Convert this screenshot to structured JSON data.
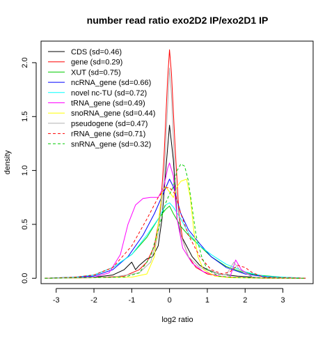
{
  "chart_data": {
    "type": "line",
    "title": "number read ratio exo2D2 IP/exo2D1 IP",
    "xlabel": "log2 ratio",
    "ylabel": "density",
    "xlim": [
      -3.4,
      3.8
    ],
    "ylim": [
      -0.05,
      2.2
    ],
    "xticks": [
      -3,
      -2,
      -1,
      0,
      1,
      2,
      3
    ],
    "yticks": [
      0.0,
      0.5,
      1.0,
      1.5,
      2.0
    ],
    "xtick_labels": [
      "-3",
      "-2",
      "-1",
      "0",
      "1",
      "2",
      "3"
    ],
    "ytick_labels": [
      "0.0",
      "0.5",
      "1.0",
      "1.5",
      "2.0"
    ],
    "grid": false,
    "legend_position": "top-left",
    "series": [
      {
        "name": "CDS (sd=0.46)",
        "color": "#000000",
        "dash": "solid",
        "points": [
          [
            -3.3,
            0
          ],
          [
            -2.5,
            0.005
          ],
          [
            -2.0,
            0.01
          ],
          [
            -1.5,
            0.03
          ],
          [
            -1.2,
            0.08
          ],
          [
            -1.0,
            0.15
          ],
          [
            -0.9,
            0.08
          ],
          [
            -0.8,
            0.12
          ],
          [
            -0.6,
            0.18
          ],
          [
            -0.45,
            0.2
          ],
          [
            -0.3,
            0.3
          ],
          [
            -0.2,
            0.55
          ],
          [
            -0.1,
            1.0
          ],
          [
            0.0,
            1.42
          ],
          [
            0.1,
            1.1
          ],
          [
            0.2,
            0.55
          ],
          [
            0.3,
            0.4
          ],
          [
            0.45,
            0.3
          ],
          [
            0.6,
            0.2
          ],
          [
            0.8,
            0.12
          ],
          [
            1.0,
            0.08
          ],
          [
            1.3,
            0.04
          ],
          [
            1.8,
            0.02
          ],
          [
            2.5,
            0.005
          ],
          [
            3.6,
            0
          ]
        ]
      },
      {
        "name": "gene (sd=0.29)",
        "color": "#ff0000",
        "dash": "solid",
        "points": [
          [
            -3.3,
            0
          ],
          [
            -2.0,
            0.005
          ],
          [
            -1.2,
            0.02
          ],
          [
            -0.8,
            0.08
          ],
          [
            -0.6,
            0.15
          ],
          [
            -0.4,
            0.3
          ],
          [
            -0.25,
            0.6
          ],
          [
            -0.15,
            1.1
          ],
          [
            -0.05,
            1.85
          ],
          [
            0.0,
            2.12
          ],
          [
            0.05,
            1.9
          ],
          [
            0.15,
            1.2
          ],
          [
            0.25,
            0.6
          ],
          [
            0.35,
            0.35
          ],
          [
            0.5,
            0.2
          ],
          [
            0.7,
            0.1
          ],
          [
            1.0,
            0.04
          ],
          [
            1.5,
            0.01
          ],
          [
            2.5,
            0
          ],
          [
            3.6,
            0
          ]
        ]
      },
      {
        "name": "XUT (sd=0.75)",
        "color": "#00cc00",
        "dash": "solid",
        "points": [
          [
            -3.3,
            0
          ],
          [
            -2.5,
            0.01
          ],
          [
            -2.0,
            0.03
          ],
          [
            -1.5,
            0.1
          ],
          [
            -1.0,
            0.22
          ],
          [
            -0.6,
            0.38
          ],
          [
            -0.3,
            0.55
          ],
          [
            -0.1,
            0.64
          ],
          [
            0.0,
            0.67
          ],
          [
            0.1,
            0.6
          ],
          [
            0.3,
            0.48
          ],
          [
            0.5,
            0.4
          ],
          [
            0.8,
            0.3
          ],
          [
            1.1,
            0.2
          ],
          [
            1.5,
            0.11
          ],
          [
            1.9,
            0.06
          ],
          [
            2.3,
            0.03
          ],
          [
            3.0,
            0.01
          ],
          [
            3.6,
            0
          ]
        ]
      },
      {
        "name": "ncRNA_gene (sd=0.66)",
        "color": "#0000ff",
        "dash": "solid",
        "points": [
          [
            -3.3,
            0
          ],
          [
            -2.5,
            0.01
          ],
          [
            -2.0,
            0.02
          ],
          [
            -1.5,
            0.08
          ],
          [
            -1.1,
            0.2
          ],
          [
            -0.7,
            0.4
          ],
          [
            -0.4,
            0.6
          ],
          [
            -0.15,
            0.8
          ],
          [
            0.0,
            0.92
          ],
          [
            0.1,
            0.85
          ],
          [
            0.3,
            0.6
          ],
          [
            0.5,
            0.45
          ],
          [
            0.8,
            0.32
          ],
          [
            1.1,
            0.2
          ],
          [
            1.5,
            0.1
          ],
          [
            2.0,
            0.04
          ],
          [
            2.5,
            0.015
          ],
          [
            3.6,
            0
          ]
        ]
      },
      {
        "name": "novel nc-TU (sd=0.72)",
        "color": "#00ffff",
        "dash": "solid",
        "points": [
          [
            -3.3,
            0
          ],
          [
            -2.5,
            0.01
          ],
          [
            -2.0,
            0.03
          ],
          [
            -1.5,
            0.1
          ],
          [
            -1.0,
            0.22
          ],
          [
            -0.6,
            0.4
          ],
          [
            -0.3,
            0.55
          ],
          [
            -0.1,
            0.68
          ],
          [
            0.0,
            0.7
          ],
          [
            0.1,
            0.66
          ],
          [
            0.3,
            0.55
          ],
          [
            0.5,
            0.42
          ],
          [
            0.8,
            0.3
          ],
          [
            1.1,
            0.22
          ],
          [
            1.5,
            0.13
          ],
          [
            2.0,
            0.06
          ],
          [
            2.5,
            0.02
          ],
          [
            3.0,
            0.01
          ],
          [
            3.6,
            0
          ]
        ]
      },
      {
        "name": "tRNA_gene (sd=0.49)",
        "color": "#ff00ff",
        "dash": "solid",
        "points": [
          [
            -3.3,
            0
          ],
          [
            -2.5,
            0.005
          ],
          [
            -2.0,
            0.01
          ],
          [
            -1.6,
            0.05
          ],
          [
            -1.3,
            0.22
          ],
          [
            -1.1,
            0.5
          ],
          [
            -0.9,
            0.68
          ],
          [
            -0.7,
            0.74
          ],
          [
            -0.5,
            0.75
          ],
          [
            -0.3,
            0.75
          ],
          [
            -0.15,
            0.85
          ],
          [
            -0.05,
            1.02
          ],
          [
            0.0,
            1.07
          ],
          [
            0.1,
            0.95
          ],
          [
            0.2,
            0.55
          ],
          [
            0.35,
            0.28
          ],
          [
            0.6,
            0.14
          ],
          [
            0.9,
            0.06
          ],
          [
            1.3,
            0.02
          ],
          [
            1.6,
            0.01
          ],
          [
            1.75,
            0.17
          ],
          [
            1.9,
            0.08
          ],
          [
            2.2,
            0.01
          ],
          [
            3.6,
            0
          ]
        ]
      },
      {
        "name": "snoRNA_gene (sd=0.44)",
        "color": "#ffff00",
        "dash": "solid",
        "points": [
          [
            -3.3,
            0
          ],
          [
            -1.0,
            0.01
          ],
          [
            -0.6,
            0.04
          ],
          [
            -0.4,
            0.2
          ],
          [
            -0.3,
            0.5
          ],
          [
            -0.2,
            0.8
          ],
          [
            -0.1,
            0.85
          ],
          [
            0.0,
            0.8
          ],
          [
            0.1,
            0.75
          ],
          [
            0.2,
            0.85
          ],
          [
            0.3,
            0.9
          ],
          [
            0.45,
            0.92
          ],
          [
            0.55,
            0.75
          ],
          [
            0.65,
            0.42
          ],
          [
            0.75,
            0.2
          ],
          [
            0.9,
            0.08
          ],
          [
            1.2,
            0.02
          ],
          [
            1.6,
            0.005
          ],
          [
            3.6,
            0
          ]
        ]
      },
      {
        "name": "pseudogene (sd=0.47)",
        "color": "#b0b0b0",
        "dash": "solid",
        "points": [
          [
            -3.3,
            0
          ],
          [
            -1.5,
            0.01
          ],
          [
            -0.8,
            0.05
          ],
          [
            -0.5,
            0.15
          ],
          [
            -0.3,
            0.4
          ],
          [
            -0.15,
            0.9
          ],
          [
            -0.05,
            1.6
          ],
          [
            0.0,
            1.95
          ],
          [
            0.05,
            1.7
          ],
          [
            0.15,
            0.9
          ],
          [
            0.3,
            0.4
          ],
          [
            0.5,
            0.2
          ],
          [
            0.8,
            0.1
          ],
          [
            1.2,
            0.05
          ],
          [
            1.5,
            0.03
          ],
          [
            1.7,
            0.15
          ],
          [
            1.85,
            0.08
          ],
          [
            2.2,
            0.01
          ],
          [
            3.6,
            0
          ]
        ]
      },
      {
        "name": "rRNA_gene (sd=0.71)",
        "color": "#ff0000",
        "dash": "dashed",
        "points": [
          [
            -3.3,
            0
          ],
          [
            -2.5,
            0.01
          ],
          [
            -2.0,
            0.03
          ],
          [
            -1.5,
            0.1
          ],
          [
            -1.0,
            0.3
          ],
          [
            -0.6,
            0.55
          ],
          [
            -0.3,
            0.75
          ],
          [
            -0.1,
            0.84
          ],
          [
            0.0,
            0.84
          ],
          [
            0.15,
            0.78
          ],
          [
            0.3,
            0.6
          ],
          [
            0.5,
            0.4
          ],
          [
            0.8,
            0.2
          ],
          [
            1.1,
            0.08
          ],
          [
            1.4,
            0.04
          ],
          [
            1.6,
            0.06
          ],
          [
            1.8,
            0.12
          ],
          [
            2.0,
            0.1
          ],
          [
            2.2,
            0.05
          ],
          [
            2.5,
            0.01
          ],
          [
            3.6,
            0
          ]
        ]
      },
      {
        "name": "snRNA_gene (sd=0.32)",
        "color": "#00cc00",
        "dash": "dashed",
        "points": [
          [
            -3.3,
            0
          ],
          [
            -1.2,
            0.01
          ],
          [
            -0.8,
            0.05
          ],
          [
            -0.5,
            0.2
          ],
          [
            -0.3,
            0.45
          ],
          [
            -0.1,
            0.7
          ],
          [
            0.0,
            0.78
          ],
          [
            0.1,
            0.85
          ],
          [
            0.2,
            1.0
          ],
          [
            0.3,
            1.06
          ],
          [
            0.4,
            1.04
          ],
          [
            0.5,
            0.9
          ],
          [
            0.6,
            0.65
          ],
          [
            0.7,
            0.4
          ],
          [
            0.85,
            0.2
          ],
          [
            1.0,
            0.08
          ],
          [
            1.3,
            0.02
          ],
          [
            1.8,
            0.005
          ],
          [
            3.6,
            0
          ]
        ]
      }
    ]
  }
}
